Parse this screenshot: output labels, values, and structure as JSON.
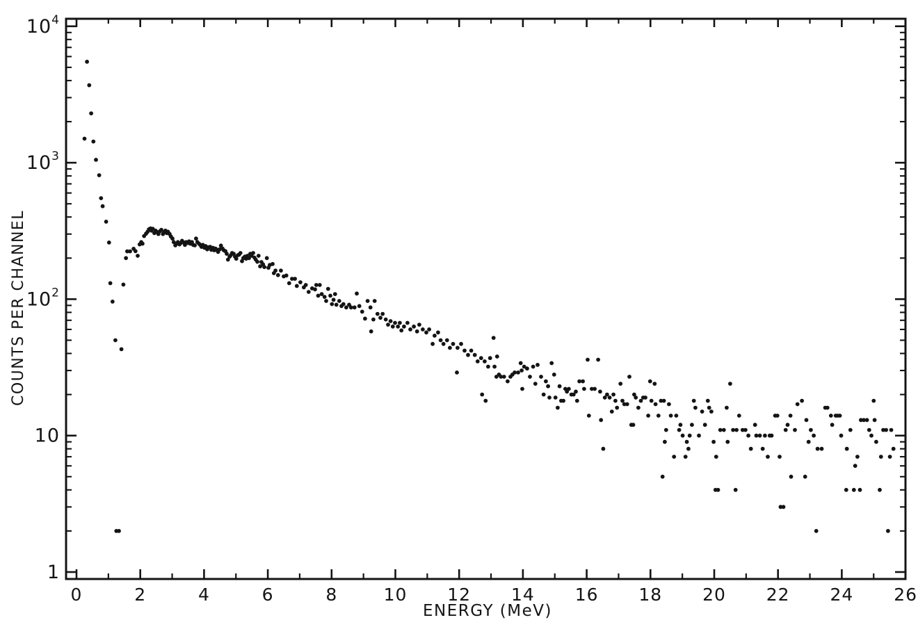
{
  "figure": {
    "description": "Scanned pulse-height spectrum scatter plot",
    "background_color": "#ffffff",
    "ink_color": "#141414"
  },
  "chart_data": {
    "type": "scatter",
    "title": "",
    "xlabel": "ENERGY (MeV)",
    "ylabel": "COUNTS PER CHANNEL",
    "grid": false,
    "legend": null,
    "marker": {
      "shape": "dot",
      "color": "#141414",
      "radius_px": 2.9
    },
    "x_axis": {
      "min": -0.33,
      "max": 26,
      "major_ticks": [
        0,
        2,
        4,
        6,
        8,
        10,
        12,
        14,
        16,
        18,
        20,
        22,
        24,
        26
      ],
      "major_tick_labels": [
        "0",
        "2",
        "4",
        "6",
        "8",
        "10",
        "12",
        "14",
        "16",
        "18",
        "20",
        "22",
        "24",
        "26"
      ],
      "minor_ticks": [
        1,
        3,
        5,
        7,
        9,
        11,
        13,
        15,
        17,
        19,
        21,
        23,
        25
      ]
    },
    "y_axis": {
      "scale": "log",
      "min": 0.89,
      "max": 11300,
      "decade_ticks": [
        10000,
        1000,
        100,
        10,
        1
      ],
      "decade_labels": [
        "10^4",
        "10^3",
        "10^2",
        "10",
        "1"
      ],
      "minor_decades": [
        1,
        10,
        100,
        1000
      ],
      "minor_multiples": [
        2,
        3,
        4,
        5,
        6,
        7,
        8,
        9
      ]
    },
    "points": [
      [
        0.25,
        1500
      ],
      [
        0.33,
        5500
      ],
      [
        0.4,
        3700
      ],
      [
        0.46,
        2300
      ],
      [
        0.53,
        1430
      ],
      [
        0.61,
        1050
      ],
      [
        0.71,
        810
      ],
      [
        0.77,
        550
      ],
      [
        0.82,
        480
      ],
      [
        0.93,
        370
      ],
      [
        1.02,
        260
      ],
      [
        1.06,
        131
      ],
      [
        1.13,
        96
      ],
      [
        1.22,
        50
      ],
      [
        1.25,
        2
      ],
      [
        1.33,
        2
      ],
      [
        1.41,
        43
      ],
      [
        1.47,
        128
      ],
      [
        1.55,
        200
      ],
      [
        1.59,
        224
      ],
      [
        1.68,
        224
      ],
      [
        1.79,
        234
      ],
      [
        1.85,
        225
      ],
      [
        1.92,
        208
      ],
      [
        1.98,
        252
      ],
      [
        2.03,
        262
      ],
      [
        2.07,
        255
      ],
      [
        2.12,
        290
      ],
      [
        2.18,
        302
      ],
      [
        2.23,
        312
      ],
      [
        2.27,
        325
      ],
      [
        2.32,
        330
      ],
      [
        2.35,
        318
      ],
      [
        2.39,
        328
      ],
      [
        2.44,
        305
      ],
      [
        2.48,
        318
      ],
      [
        2.53,
        310
      ],
      [
        2.57,
        300
      ],
      [
        2.62,
        315
      ],
      [
        2.66,
        322
      ],
      [
        2.71,
        300
      ],
      [
        2.75,
        310
      ],
      [
        2.79,
        318
      ],
      [
        2.83,
        305
      ],
      [
        2.87,
        312
      ],
      [
        2.92,
        300
      ],
      [
        2.96,
        288
      ],
      [
        3.01,
        278
      ],
      [
        3.05,
        262
      ],
      [
        3.1,
        248
      ],
      [
        3.14,
        255
      ],
      [
        3.18,
        262
      ],
      [
        3.23,
        252
      ],
      [
        3.27,
        258
      ],
      [
        3.31,
        268
      ],
      [
        3.36,
        260
      ],
      [
        3.4,
        250
      ],
      [
        3.44,
        262
      ],
      [
        3.49,
        258
      ],
      [
        3.53,
        265
      ],
      [
        3.57,
        255
      ],
      [
        3.62,
        262
      ],
      [
        3.66,
        250
      ],
      [
        3.71,
        248
      ],
      [
        3.75,
        278
      ],
      [
        3.79,
        262
      ],
      [
        3.84,
        255
      ],
      [
        3.88,
        250
      ],
      [
        3.92,
        242
      ],
      [
        3.96,
        250
      ],
      [
        4.01,
        238
      ],
      [
        4.05,
        245
      ],
      [
        4.1,
        232
      ],
      [
        4.14,
        240
      ],
      [
        4.19,
        242
      ],
      [
        4.23,
        230
      ],
      [
        4.28,
        238
      ],
      [
        4.32,
        228
      ],
      [
        4.36,
        235
      ],
      [
        4.4,
        230
      ],
      [
        4.44,
        222
      ],
      [
        4.49,
        232
      ],
      [
        4.53,
        247
      ],
      [
        4.58,
        235
      ],
      [
        4.62,
        228
      ],
      [
        4.67,
        225
      ],
      [
        4.71,
        215
      ],
      [
        4.75,
        195
      ],
      [
        4.8,
        205
      ],
      [
        4.84,
        210
      ],
      [
        4.88,
        218
      ],
      [
        4.93,
        215
      ],
      [
        4.97,
        205
      ],
      [
        5.01,
        198
      ],
      [
        5.06,
        210
      ],
      [
        5.1,
        212
      ],
      [
        5.14,
        218
      ],
      [
        5.19,
        190
      ],
      [
        5.23,
        200
      ],
      [
        5.28,
        205
      ],
      [
        5.32,
        198
      ],
      [
        5.36,
        208
      ],
      [
        5.41,
        200
      ],
      [
        5.45,
        215
      ],
      [
        5.49,
        208
      ],
      [
        5.54,
        218
      ],
      [
        5.58,
        202
      ],
      [
        5.62,
        195
      ],
      [
        5.67,
        188
      ],
      [
        5.71,
        208
      ],
      [
        5.76,
        174
      ],
      [
        5.8,
        187
      ],
      [
        5.85,
        180
      ],
      [
        5.89,
        172
      ],
      [
        5.97,
        200
      ],
      [
        6.02,
        170
      ],
      [
        6.06,
        178
      ],
      [
        6.15,
        181
      ],
      [
        6.19,
        155
      ],
      [
        6.24,
        162
      ],
      [
        6.32,
        150
      ],
      [
        6.41,
        162
      ],
      [
        6.5,
        147
      ],
      [
        6.58,
        149
      ],
      [
        6.67,
        131
      ],
      [
        6.76,
        141
      ],
      [
        6.85,
        141
      ],
      [
        6.91,
        125
      ],
      [
        7.02,
        133
      ],
      [
        7.13,
        122
      ],
      [
        7.19,
        127
      ],
      [
        7.28,
        113
      ],
      [
        7.39,
        120
      ],
      [
        7.48,
        118
      ],
      [
        7.52,
        127
      ],
      [
        7.58,
        106
      ],
      [
        7.63,
        127
      ],
      [
        7.69,
        109
      ],
      [
        7.78,
        104
      ],
      [
        7.83,
        97
      ],
      [
        7.89,
        119
      ],
      [
        7.96,
        106
      ],
      [
        8.01,
        92
      ],
      [
        8.06,
        99
      ],
      [
        8.11,
        109
      ],
      [
        8.15,
        91
      ],
      [
        8.24,
        97
      ],
      [
        8.31,
        89
      ],
      [
        8.37,
        92
      ],
      [
        8.46,
        87
      ],
      [
        8.55,
        91
      ],
      [
        8.61,
        87
      ],
      [
        8.72,
        87
      ],
      [
        8.79,
        110
      ],
      [
        8.87,
        89
      ],
      [
        8.96,
        81
      ],
      [
        9.05,
        72
      ],
      [
        9.13,
        97
      ],
      [
        9.22,
        87
      ],
      [
        9.24,
        58
      ],
      [
        9.31,
        71
      ],
      [
        9.35,
        97
      ],
      [
        9.44,
        78
      ],
      [
        9.53,
        73
      ],
      [
        9.6,
        78
      ],
      [
        9.7,
        71
      ],
      [
        9.77,
        65
      ],
      [
        9.85,
        69
      ],
      [
        9.92,
        63
      ],
      [
        9.99,
        67
      ],
      [
        10.08,
        63
      ],
      [
        10.14,
        67
      ],
      [
        10.19,
        59
      ],
      [
        10.27,
        63
      ],
      [
        10.38,
        67
      ],
      [
        10.47,
        60
      ],
      [
        10.58,
        63
      ],
      [
        10.68,
        58
      ],
      [
        10.75,
        65
      ],
      [
        10.86,
        60
      ],
      [
        10.97,
        57
      ],
      [
        11.06,
        60
      ],
      [
        11.17,
        47
      ],
      [
        11.23,
        54
      ],
      [
        11.34,
        57
      ],
      [
        11.42,
        50
      ],
      [
        11.51,
        47
      ],
      [
        11.62,
        50
      ],
      [
        11.71,
        44
      ],
      [
        11.81,
        47
      ],
      [
        11.93,
        29
      ],
      [
        11.95,
        44
      ],
      [
        12.06,
        47
      ],
      [
        12.17,
        42
      ],
      [
        12.28,
        39
      ],
      [
        12.38,
        42
      ],
      [
        12.49,
        39
      ],
      [
        12.58,
        35
      ],
      [
        12.69,
        37
      ],
      [
        12.72,
        20
      ],
      [
        12.8,
        35
      ],
      [
        12.83,
        18
      ],
      [
        12.91,
        32
      ],
      [
        12.97,
        37
      ],
      [
        13.08,
        52
      ],
      [
        13.11,
        32
      ],
      [
        13.17,
        27
      ],
      [
        13.25,
        28
      ],
      [
        13.19,
        38
      ],
      [
        13.31,
        27
      ],
      [
        13.41,
        27
      ],
      [
        13.52,
        25
      ],
      [
        13.61,
        27
      ],
      [
        13.67,
        28
      ],
      [
        13.74,
        29
      ],
      [
        13.85,
        29
      ],
      [
        13.93,
        34
      ],
      [
        13.96,
        30
      ],
      [
        13.98,
        22
      ],
      [
        14.04,
        32
      ],
      [
        14.13,
        31
      ],
      [
        14.22,
        27
      ],
      [
        14.32,
        32
      ],
      [
        14.39,
        24
      ],
      [
        14.46,
        33
      ],
      [
        14.57,
        27
      ],
      [
        14.65,
        20
      ],
      [
        14.72,
        25
      ],
      [
        14.79,
        23
      ],
      [
        14.83,
        19
      ],
      [
        14.9,
        34
      ],
      [
        14.98,
        28
      ],
      [
        15.02,
        19
      ],
      [
        15.09,
        16
      ],
      [
        15.15,
        23
      ],
      [
        15.2,
        18
      ],
      [
        15.27,
        18
      ],
      [
        15.33,
        22
      ],
      [
        15.38,
        21
      ],
      [
        15.44,
        22
      ],
      [
        15.52,
        20
      ],
      [
        15.59,
        20
      ],
      [
        15.66,
        21
      ],
      [
        15.7,
        18
      ],
      [
        15.77,
        25
      ],
      [
        15.88,
        25
      ],
      [
        15.92,
        22
      ],
      [
        16.03,
        36
      ],
      [
        16.07,
        14
      ],
      [
        16.16,
        22
      ],
      [
        16.25,
        22
      ],
      [
        16.36,
        36
      ],
      [
        16.42,
        21
      ],
      [
        16.45,
        13
      ],
      [
        16.52,
        8
      ],
      [
        16.57,
        19
      ],
      [
        16.64,
        20
      ],
      [
        16.72,
        19
      ],
      [
        16.79,
        15
      ],
      [
        16.84,
        20
      ],
      [
        16.9,
        18
      ],
      [
        16.95,
        16
      ],
      [
        17.06,
        24
      ],
      [
        17.12,
        18
      ],
      [
        17.18,
        17
      ],
      [
        17.27,
        17
      ],
      [
        17.34,
        27
      ],
      [
        17.4,
        12
      ],
      [
        17.46,
        12
      ],
      [
        17.49,
        20
      ],
      [
        17.54,
        19
      ],
      [
        17.62,
        16
      ],
      [
        17.7,
        18
      ],
      [
        17.77,
        19
      ],
      [
        17.84,
        19
      ],
      [
        17.93,
        14
      ],
      [
        17.99,
        25
      ],
      [
        18.03,
        18
      ],
      [
        18.13,
        24
      ],
      [
        18.16,
        17
      ],
      [
        18.25,
        14
      ],
      [
        18.33,
        18
      ],
      [
        18.38,
        5
      ],
      [
        18.42,
        18
      ],
      [
        18.45,
        9
      ],
      [
        18.49,
        11
      ],
      [
        18.58,
        17
      ],
      [
        18.64,
        14
      ],
      [
        18.74,
        7
      ],
      [
        18.81,
        14
      ],
      [
        18.9,
        11
      ],
      [
        18.94,
        12
      ],
      [
        19.01,
        10
      ],
      [
        19.1,
        7
      ],
      [
        19.14,
        9
      ],
      [
        19.19,
        8
      ],
      [
        19.23,
        10
      ],
      [
        19.3,
        12
      ],
      [
        19.36,
        18
      ],
      [
        19.41,
        16
      ],
      [
        19.52,
        10
      ],
      [
        19.62,
        15
      ],
      [
        19.71,
        12
      ],
      [
        19.8,
        18
      ],
      [
        19.84,
        16
      ],
      [
        19.91,
        15
      ],
      [
        19.98,
        9
      ],
      [
        20.04,
        4
      ],
      [
        20.06,
        7
      ],
      [
        20.12,
        4
      ],
      [
        20.19,
        11
      ],
      [
        20.3,
        11
      ],
      [
        20.39,
        16
      ],
      [
        20.42,
        9
      ],
      [
        20.5,
        24
      ],
      [
        20.59,
        11
      ],
      [
        20.67,
        4
      ],
      [
        20.7,
        11
      ],
      [
        20.78,
        14
      ],
      [
        20.89,
        11
      ],
      [
        20.98,
        11
      ],
      [
        21.07,
        10
      ],
      [
        21.15,
        8
      ],
      [
        21.28,
        12
      ],
      [
        21.32,
        10
      ],
      [
        21.43,
        10
      ],
      [
        21.52,
        8
      ],
      [
        21.59,
        10
      ],
      [
        21.68,
        7
      ],
      [
        21.74,
        10
      ],
      [
        21.8,
        10
      ],
      [
        21.91,
        14
      ],
      [
        21.98,
        14
      ],
      [
        22.05,
        7
      ],
      [
        22.08,
        3
      ],
      [
        22.17,
        3
      ],
      [
        22.24,
        11
      ],
      [
        22.3,
        12
      ],
      [
        22.39,
        14
      ],
      [
        22.41,
        5
      ],
      [
        22.53,
        11
      ],
      [
        22.61,
        17
      ],
      [
        22.75,
        18
      ],
      [
        22.85,
        5
      ],
      [
        22.89,
        13
      ],
      [
        22.96,
        9
      ],
      [
        23.03,
        11
      ],
      [
        23.12,
        10
      ],
      [
        23.2,
        2
      ],
      [
        23.24,
        8
      ],
      [
        23.37,
        8
      ],
      [
        23.48,
        16
      ],
      [
        23.55,
        16
      ],
      [
        23.66,
        14
      ],
      [
        23.7,
        12
      ],
      [
        23.81,
        14
      ],
      [
        23.87,
        14
      ],
      [
        23.94,
        14
      ],
      [
        23.98,
        10
      ],
      [
        24.14,
        4
      ],
      [
        24.16,
        8
      ],
      [
        24.27,
        11
      ],
      [
        24.38,
        4
      ],
      [
        24.42,
        6
      ],
      [
        24.49,
        7
      ],
      [
        24.57,
        4
      ],
      [
        24.6,
        13
      ],
      [
        24.69,
        13
      ],
      [
        24.79,
        13
      ],
      [
        24.86,
        11
      ],
      [
        24.93,
        10
      ],
      [
        25.0,
        18
      ],
      [
        25.03,
        13
      ],
      [
        25.08,
        9
      ],
      [
        25.19,
        4
      ],
      [
        25.23,
        7
      ],
      [
        25.3,
        11
      ],
      [
        25.39,
        11
      ],
      [
        25.45,
        2
      ],
      [
        25.51,
        7
      ],
      [
        25.55,
        11
      ],
      [
        25.62,
        8
      ]
    ]
  }
}
